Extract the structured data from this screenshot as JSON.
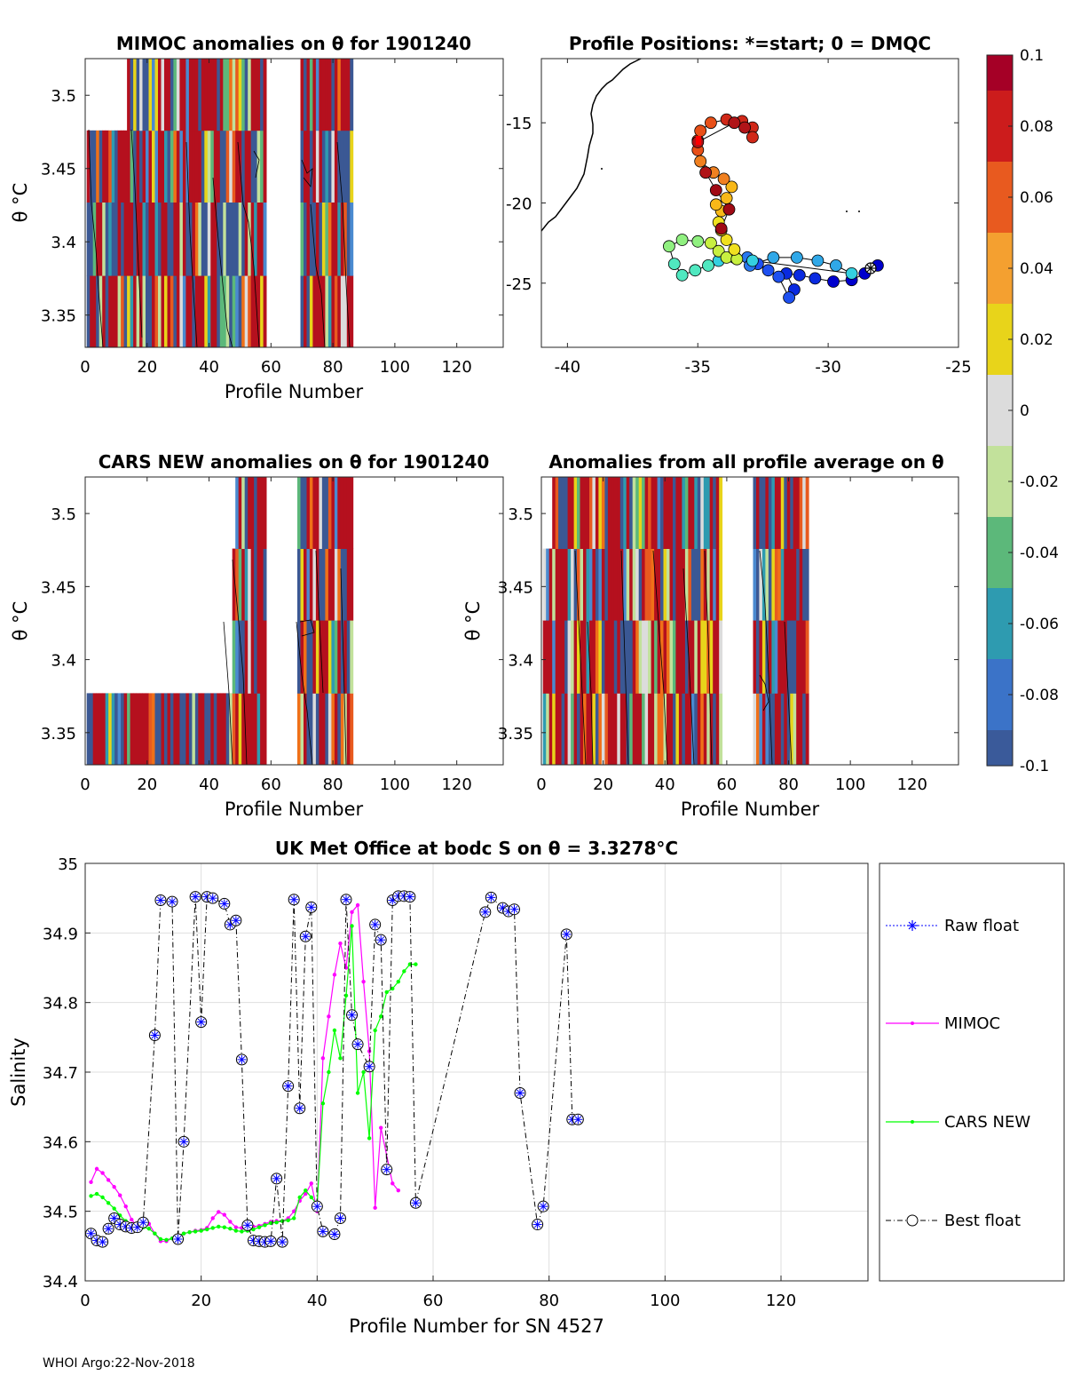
{
  "footer": "WHOI Argo:22-Nov-2018",
  "colors": {
    "raw_float": "#0000ff",
    "mimoc": "#ff00ff",
    "cars": "#00ff00",
    "best_float": "#000000",
    "pos_high": "#a50026",
    "pos_low": "#0000cd"
  },
  "colorbar": {
    "ticks": [
      "0.1",
      "0.08",
      "0.06",
      "0.04",
      "0.02",
      "0",
      "-0.02",
      "-0.04",
      "-0.06",
      "-0.08",
      "-0.1"
    ],
    "stops": [
      "#a50026",
      "#cc1c1c",
      "#e85a1f",
      "#f4a030",
      "#e8d41a",
      "#dcdcdc",
      "#c2e19b",
      "#5cb87a",
      "#2e9bb0",
      "#3b73c8",
      "#3a5a9a"
    ]
  },
  "chart_data": [
    {
      "id": "mimoc_anom",
      "type": "heatmap",
      "title": "MIMOC anomalies on θ  for 1901240",
      "xlabel": "Profile Number",
      "ylabel": "θ °C",
      "xlim": [
        0,
        135
      ],
      "ylim": [
        3.328,
        3.525
      ],
      "xticks": [
        "0",
        "20",
        "40",
        "60",
        "80",
        "100",
        "120"
      ],
      "yticks": [
        "3.35",
        "3.4",
        "3.45",
        "3.5"
      ],
      "coverage": "profiles 1-85, blank at 59-69"
    },
    {
      "id": "positions",
      "type": "scatter",
      "title": "Profile Positions: *=start; 0 = DMQC",
      "xlim": [
        -41,
        -25
      ],
      "ylim": [
        -29,
        -11
      ],
      "xticks": [
        "-40",
        "-35",
        "-30",
        "-25"
      ],
      "yticks": [
        "-15",
        "-20",
        "-25"
      ],
      "track": [
        [
          -28.1,
          -23.9
        ],
        [
          -28.6,
          -24.4
        ],
        [
          -29.1,
          -24.8
        ],
        [
          -29.8,
          -24.9
        ],
        [
          -30.5,
          -24.7
        ],
        [
          -31.1,
          -24.5
        ],
        [
          -31.6,
          -24.4
        ],
        [
          -31.3,
          -25.4
        ],
        [
          -31.5,
          -25.9
        ],
        [
          -31.9,
          -24.6
        ],
        [
          -32.3,
          -24.2
        ],
        [
          -32.7,
          -23.8
        ],
        [
          -33.1,
          -23.4
        ],
        [
          -33.6,
          -23.3
        ],
        [
          -33.0,
          -23.9
        ],
        [
          -32.1,
          -23.4
        ],
        [
          -31.2,
          -23.4
        ],
        [
          -30.4,
          -23.6
        ],
        [
          -29.7,
          -23.9
        ],
        [
          -29.1,
          -24.4
        ],
        [
          -32.9,
          -23.6
        ],
        [
          -33.6,
          -23.4
        ],
        [
          -34.2,
          -23.6
        ],
        [
          -34.6,
          -23.9
        ],
        [
          -35.1,
          -24.2
        ],
        [
          -35.6,
          -24.5
        ],
        [
          -35.9,
          -23.8
        ],
        [
          -36.1,
          -22.7
        ],
        [
          -35.6,
          -22.3
        ],
        [
          -35.0,
          -22.4
        ],
        [
          -34.5,
          -22.5
        ],
        [
          -34.2,
          -23.0
        ],
        [
          -33.9,
          -23.4
        ],
        [
          -33.5,
          -23.5
        ],
        [
          -33.6,
          -22.9
        ],
        [
          -33.9,
          -22.3
        ],
        [
          -34.1,
          -21.7
        ],
        [
          -34.2,
          -21.2
        ],
        [
          -34.1,
          -20.5
        ],
        [
          -34.3,
          -20.1
        ],
        [
          -33.9,
          -19.7
        ],
        [
          -33.7,
          -19.0
        ],
        [
          -34.0,
          -18.5
        ],
        [
          -34.4,
          -18.1
        ],
        [
          -34.9,
          -17.4
        ],
        [
          -35.0,
          -16.7
        ],
        [
          -35.0,
          -16.1
        ],
        [
          -34.9,
          -15.5
        ],
        [
          -34.5,
          -15.0
        ],
        [
          -33.9,
          -14.8
        ],
        [
          -33.3,
          -14.9
        ],
        [
          -32.9,
          -15.3
        ],
        [
          -32.9,
          -15.9
        ],
        [
          -33.2,
          -15.3
        ],
        [
          -33.6,
          -15.0
        ],
        [
          -35.0,
          -16.2
        ],
        [
          -34.7,
          -18.1
        ],
        [
          -34.3,
          -19.2
        ],
        [
          -33.8,
          -20.4
        ],
        [
          -34.1,
          -21.6
        ]
      ]
    },
    {
      "id": "cars_anom",
      "type": "heatmap",
      "title": "CARS NEW anomalies on θ for 1901240",
      "xlabel": "Profile Number",
      "ylabel": "θ °C",
      "xlim": [
        0,
        135
      ],
      "ylim": [
        3.328,
        3.525
      ],
      "xticks": [
        "0",
        "20",
        "40",
        "60",
        "80",
        "100",
        "120"
      ],
      "yticks": [
        "3.35",
        "3.4",
        "3.45",
        "3.5"
      ]
    },
    {
      "id": "all_avg_anom",
      "type": "heatmap",
      "title": "Anomalies from all profile average on θ",
      "xlabel": "Profile Number",
      "ylabel": "θ °C",
      "xlim": [
        0,
        135
      ],
      "ylim": [
        3.328,
        3.525
      ],
      "xticks": [
        "0",
        "20",
        "40",
        "60",
        "80",
        "100",
        "120"
      ],
      "yticks": [
        "3.35",
        "3.4",
        "3.45",
        "3.5"
      ]
    },
    {
      "id": "salinity",
      "type": "line",
      "title": "UK Met Office at bodc S on θ = 3.3278°C",
      "xlabel": "Profile Number for SN 4527",
      "ylabel": "Salinity",
      "xlim": [
        0,
        135
      ],
      "ylim": [
        34.4,
        35.0
      ],
      "xticks": [
        "0",
        "20",
        "40",
        "60",
        "80",
        "100",
        "120"
      ],
      "yticks": [
        "34.4",
        "34.5",
        "34.6",
        "34.7",
        "34.8",
        "34.9",
        "35"
      ],
      "legend": [
        "Raw float",
        "MIMOC",
        "CARS NEW",
        "Best float"
      ],
      "series": [
        {
          "name": "Best float",
          "x": [
            1,
            2,
            3,
            4,
            5,
            6,
            7,
            8,
            9,
            10,
            12,
            13,
            15,
            16,
            17,
            19,
            20,
            21,
            22,
            24,
            25,
            26,
            27,
            28,
            29,
            30,
            31,
            32,
            33,
            34,
            35,
            36,
            37,
            38,
            39,
            40,
            41,
            43,
            44,
            45,
            46,
            47,
            49,
            50,
            51,
            52,
            53,
            54,
            55,
            56,
            57,
            69,
            70,
            72,
            73,
            74,
            75,
            78,
            79,
            83,
            84,
            85
          ],
          "y": [
            34.468,
            34.458,
            34.456,
            34.475,
            34.49,
            34.481,
            34.478,
            34.476,
            34.477,
            34.484,
            34.753,
            34.947,
            34.945,
            34.46,
            34.6,
            34.952,
            34.772,
            34.952,
            34.95,
            34.942,
            34.912,
            34.918,
            34.718,
            34.48,
            34.458,
            34.457,
            34.456,
            34.457,
            34.547,
            34.456,
            34.68,
            34.948,
            34.648,
            34.895,
            34.937,
            34.507,
            34.471,
            34.467,
            34.49,
            34.948,
            34.782,
            34.74,
            34.708,
            34.912,
            34.89,
            34.56,
            34.947,
            34.953,
            34.953,
            34.952,
            34.512,
            34.93,
            34.951,
            34.936,
            34.931,
            34.934,
            34.67,
            34.481,
            34.507,
            34.898,
            34.632,
            34.632
          ]
        },
        {
          "name": "MIMOC",
          "x": [
            1,
            2,
            3,
            4,
            5,
            6,
            7,
            8,
            9,
            10,
            11,
            12,
            13,
            14,
            15,
            16,
            17,
            18,
            19,
            20,
            21,
            22,
            23,
            24,
            25,
            26,
            27,
            28,
            29,
            30,
            31,
            32,
            33,
            34,
            35,
            36,
            37,
            38,
            39,
            40,
            41,
            42,
            43,
            44,
            45,
            46,
            47,
            48,
            49,
            50,
            51,
            53,
            54
          ],
          "y": [
            34.542,
            34.561,
            34.555,
            34.545,
            34.535,
            34.523,
            34.507,
            34.488,
            34.478,
            34.478,
            34.482,
            34.468,
            34.457,
            34.457,
            34.461,
            34.465,
            34.468,
            34.47,
            34.472,
            34.473,
            34.476,
            34.49,
            34.499,
            34.495,
            34.485,
            34.477,
            34.476,
            34.477,
            34.478,
            34.479,
            34.482,
            34.485,
            34.486,
            34.486,
            34.49,
            34.5,
            34.515,
            34.525,
            34.54,
            34.5,
            34.72,
            34.78,
            34.84,
            34.885,
            34.85,
            34.93,
            34.94,
            34.83,
            34.73,
            34.505,
            34.62,
            34.54,
            34.53
          ]
        },
        {
          "name": "CARS NEW",
          "x": [
            1,
            2,
            3,
            4,
            5,
            6,
            7,
            8,
            9,
            10,
            11,
            12,
            13,
            14,
            15,
            16,
            17,
            18,
            19,
            20,
            21,
            22,
            23,
            24,
            25,
            26,
            27,
            28,
            29,
            30,
            31,
            32,
            33,
            34,
            35,
            36,
            37,
            38,
            39,
            40,
            41,
            42,
            43,
            44,
            45,
            46,
            47,
            48,
            49,
            50,
            51,
            52,
            53,
            54,
            55,
            56,
            57
          ],
          "y": [
            34.522,
            34.525,
            34.52,
            34.512,
            34.504,
            34.494,
            34.486,
            34.481,
            34.478,
            34.477,
            34.475,
            34.468,
            34.46,
            34.459,
            34.461,
            34.465,
            34.468,
            34.47,
            34.471,
            34.472,
            34.474,
            34.476,
            34.478,
            34.477,
            34.475,
            34.472,
            34.471,
            34.472,
            34.474,
            34.477,
            34.48,
            34.483,
            34.484,
            34.486,
            34.487,
            34.49,
            34.52,
            34.53,
            34.52,
            34.51,
            34.655,
            34.7,
            34.76,
            34.72,
            34.81,
            34.91,
            34.67,
            34.7,
            34.605,
            34.76,
            34.78,
            34.815,
            34.82,
            34.83,
            34.845,
            34.855,
            34.855
          ]
        }
      ]
    }
  ]
}
